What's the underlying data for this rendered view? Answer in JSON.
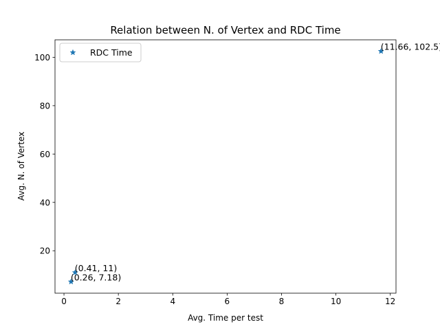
{
  "chart_data": {
    "type": "scatter",
    "title": "Relation between N. of Vertex and RDC Time",
    "xlabel": "Avg. Time per test",
    "ylabel": "Avg. N. of Vertex",
    "xlim": [
      -0.33,
      12.21
    ],
    "ylim": [
      2.45,
      107.23
    ],
    "xticks": [
      "0",
      "2",
      "4",
      "6",
      "8",
      "10",
      "12"
    ],
    "xtick_values": [
      0,
      2,
      4,
      6,
      8,
      10,
      12
    ],
    "yticks": [
      "20",
      "40",
      "60",
      "80",
      "100"
    ],
    "ytick_values": [
      20,
      40,
      60,
      80,
      100
    ],
    "grid": false,
    "legend_position": "upper-left",
    "series": [
      {
        "name": "RDC Time",
        "marker": "star",
        "color": "#1f77b4",
        "x": [
          0.26,
          0.41,
          11.66
        ],
        "y": [
          7.18,
          11,
          102.5
        ]
      }
    ],
    "annotations": [
      "(0.26, 7.18)",
      "(0.41, 11)",
      "(11.66, 102.5)"
    ]
  }
}
